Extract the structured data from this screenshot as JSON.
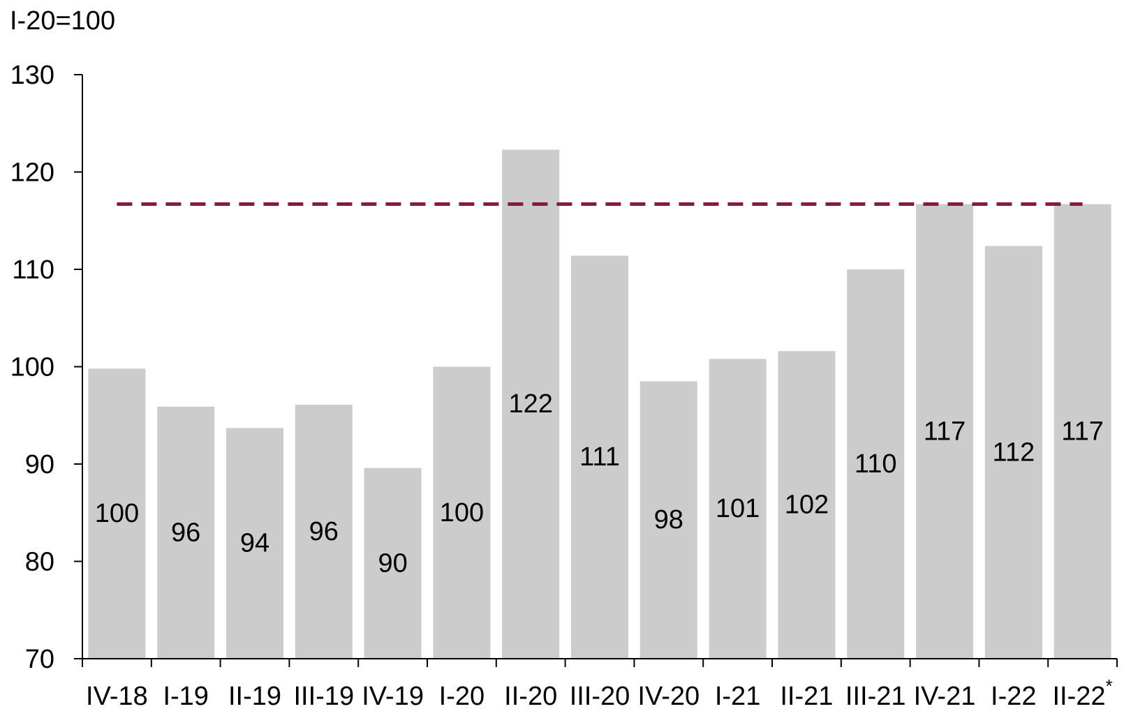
{
  "chart_data": {
    "type": "bar",
    "unit_label": "I-20=100",
    "categories": [
      "IV-18",
      "I-19",
      "II-19",
      "III-19",
      "IV-19",
      "I-20",
      "II-20",
      "III-20",
      "IV-20",
      "I-21",
      "II-21",
      "III-21",
      "IV-21",
      "I-22",
      "II-22*"
    ],
    "values": [
      99.8,
      95.9,
      93.7,
      96.1,
      89.6,
      100,
      122.3,
      111.4,
      98.5,
      100.8,
      101.6,
      110.0,
      116.7,
      112.4,
      116.7
    ],
    "data_labels": [
      "100",
      "96",
      "94",
      "96",
      "90",
      "100",
      "122",
      "111",
      "98",
      "101",
      "102",
      "110",
      "117",
      "112",
      "117"
    ],
    "ylim": [
      70,
      130
    ],
    "yticks": [
      70,
      80,
      90,
      100,
      110,
      120,
      130
    ],
    "reference_line": {
      "value": 116.7,
      "style": "dashed",
      "color": "#8b1a3a",
      "from_category": "IV-18",
      "to_category": "II-22*"
    },
    "bar_color": "#cccccc",
    "xlabel": "",
    "ylabel": "",
    "grid": false,
    "legend": "none"
  }
}
